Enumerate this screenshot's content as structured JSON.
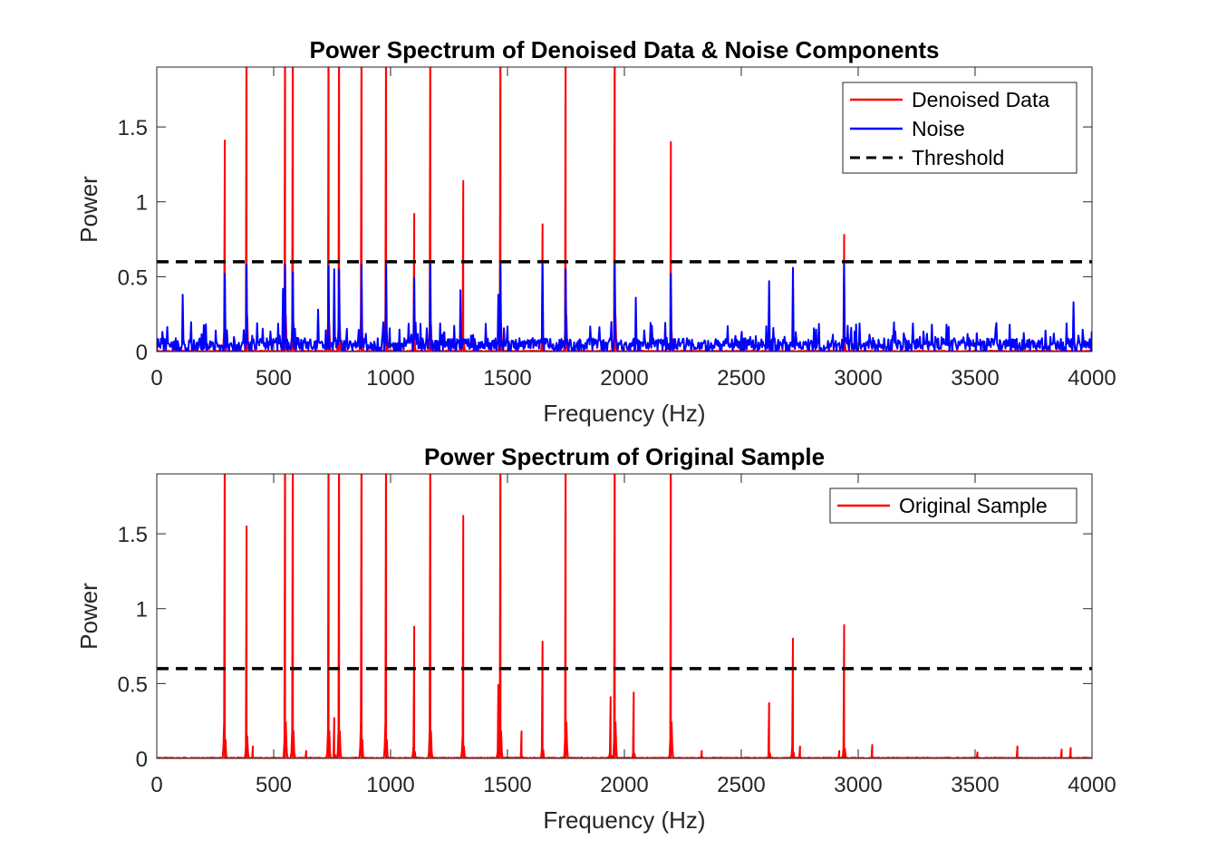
{
  "chart_data": [
    {
      "type": "line",
      "title": "Power Spectrum of Denoised Data & Noise Components",
      "xlabel": "Frequency (Hz)",
      "ylabel": "Power",
      "xlim": [
        0,
        4000
      ],
      "ylim": [
        0,
        1.9
      ],
      "xticks": [
        0,
        500,
        1000,
        1500,
        2000,
        2500,
        3000,
        3500,
        4000
      ],
      "yticks": [
        0,
        0.5,
        1,
        1.5
      ],
      "grid": false,
      "legend_position": "top-right",
      "threshold": 0.6,
      "series": [
        {
          "name": "Denoised Data",
          "color": "#ff0000",
          "style": "solid",
          "peaks": [
            {
              "x": 290,
              "y": 1.41
            },
            {
              "x": 385,
              "y": 2.5
            },
            {
              "x": 550,
              "y": 2.5
            },
            {
              "x": 582,
              "y": 2.5
            },
            {
              "x": 735,
              "y": 2.5
            },
            {
              "x": 780,
              "y": 2.5
            },
            {
              "x": 875,
              "y": 2.5
            },
            {
              "x": 980,
              "y": 2.5
            },
            {
              "x": 1100,
              "y": 0.92
            },
            {
              "x": 1170,
              "y": 2.5
            },
            {
              "x": 1310,
              "y": 1.14
            },
            {
              "x": 1470,
              "y": 2.5
            },
            {
              "x": 1650,
              "y": 0.85
            },
            {
              "x": 1750,
              "y": 2.5
            },
            {
              "x": 1960,
              "y": 2.5
            },
            {
              "x": 2200,
              "y": 1.4
            },
            {
              "x": 2940,
              "y": 0.78
            }
          ]
        },
        {
          "name": "Noise",
          "color": "#0000ff",
          "style": "solid",
          "baseline": "random 0–0.2",
          "peaks": [
            {
              "x": 110,
              "y": 0.38
            },
            {
              "x": 290,
              "y": 0.52
            },
            {
              "x": 385,
              "y": 0.58
            },
            {
              "x": 540,
              "y": 0.42
            },
            {
              "x": 550,
              "y": 0.58
            },
            {
              "x": 582,
              "y": 0.53
            },
            {
              "x": 690,
              "y": 0.28
            },
            {
              "x": 735,
              "y": 0.57
            },
            {
              "x": 760,
              "y": 0.55
            },
            {
              "x": 780,
              "y": 0.55
            },
            {
              "x": 875,
              "y": 0.58
            },
            {
              "x": 980,
              "y": 0.58
            },
            {
              "x": 1100,
              "y": 0.49
            },
            {
              "x": 1170,
              "y": 0.58
            },
            {
              "x": 1300,
              "y": 0.41
            },
            {
              "x": 1460,
              "y": 0.38
            },
            {
              "x": 1470,
              "y": 0.58
            },
            {
              "x": 1650,
              "y": 0.58
            },
            {
              "x": 1750,
              "y": 0.55
            },
            {
              "x": 1960,
              "y": 0.58
            },
            {
              "x": 2050,
              "y": 0.36
            },
            {
              "x": 2200,
              "y": 0.52
            },
            {
              "x": 2620,
              "y": 0.47
            },
            {
              "x": 2720,
              "y": 0.56
            },
            {
              "x": 2940,
              "y": 0.58
            },
            {
              "x": 3920,
              "y": 0.33
            }
          ]
        },
        {
          "name": "Threshold",
          "color": "#000000",
          "style": "dashed",
          "y": 0.6
        }
      ]
    },
    {
      "type": "line",
      "title": "Power Spectrum of Original Sample",
      "xlabel": "Frequency (Hz)",
      "ylabel": "Power",
      "xlim": [
        0,
        4000
      ],
      "ylim": [
        0,
        1.9
      ],
      "xticks": [
        0,
        500,
        1000,
        1500,
        2000,
        2500,
        3000,
        3500,
        4000
      ],
      "yticks": [
        0,
        0.5,
        1,
        1.5
      ],
      "grid": false,
      "legend_position": "top-right",
      "threshold": 0.6,
      "series": [
        {
          "name": "Original Sample",
          "color": "#ff0000",
          "style": "solid",
          "peaks": [
            {
              "x": 290,
              "y": 2.5
            },
            {
              "x": 385,
              "y": 1.55
            },
            {
              "x": 410,
              "y": 0.08
            },
            {
              "x": 550,
              "y": 2.5
            },
            {
              "x": 582,
              "y": 2.5
            },
            {
              "x": 640,
              "y": 0.05
            },
            {
              "x": 735,
              "y": 2.5
            },
            {
              "x": 760,
              "y": 0.27
            },
            {
              "x": 780,
              "y": 2.5
            },
            {
              "x": 875,
              "y": 2.5
            },
            {
              "x": 980,
              "y": 2.5
            },
            {
              "x": 1100,
              "y": 0.88
            },
            {
              "x": 1170,
              "y": 2.5
            },
            {
              "x": 1310,
              "y": 1.62
            },
            {
              "x": 1460,
              "y": 0.49
            },
            {
              "x": 1470,
              "y": 2.5
            },
            {
              "x": 1560,
              "y": 0.18
            },
            {
              "x": 1650,
              "y": 0.78
            },
            {
              "x": 1750,
              "y": 2.5
            },
            {
              "x": 1940,
              "y": 0.41
            },
            {
              "x": 1960,
              "y": 2.5
            },
            {
              "x": 2040,
              "y": 0.44
            },
            {
              "x": 2200,
              "y": 2.5
            },
            {
              "x": 2330,
              "y": 0.05
            },
            {
              "x": 2620,
              "y": 0.37
            },
            {
              "x": 2720,
              "y": 0.8
            },
            {
              "x": 2750,
              "y": 0.08
            },
            {
              "x": 2920,
              "y": 0.05
            },
            {
              "x": 2940,
              "y": 0.89
            },
            {
              "x": 3060,
              "y": 0.09
            },
            {
              "x": 3510,
              "y": 0.04
            },
            {
              "x": 3680,
              "y": 0.08
            },
            {
              "x": 3870,
              "y": 0.06
            },
            {
              "x": 3910,
              "y": 0.07
            }
          ]
        },
        {
          "name": "",
          "color": "#000000",
          "style": "dashed",
          "y": 0.6
        }
      ]
    }
  ]
}
